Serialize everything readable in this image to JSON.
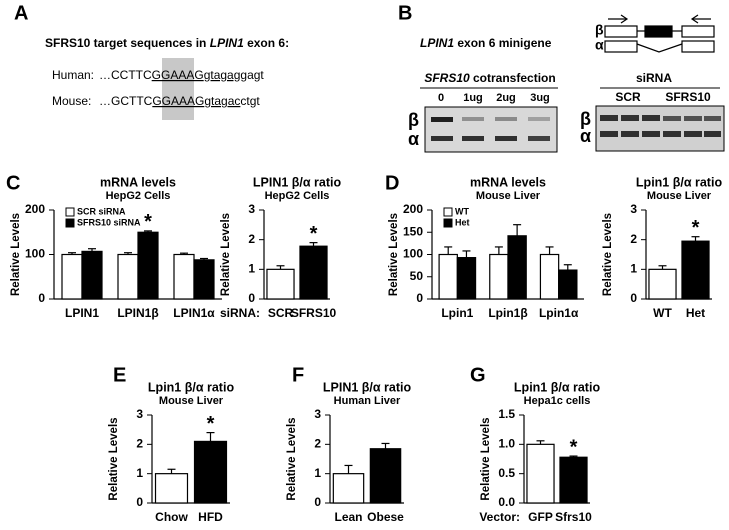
{
  "panel_labels": [
    "A",
    "B",
    "C",
    "D",
    "E",
    "F",
    "G"
  ],
  "panel_A": {
    "heading": [
      "SFRS10 target sequences in ",
      "LPIN1",
      " exon 6:"
    ],
    "rows": [
      {
        "species": "Human:",
        "seq": [
          "…CCTTC",
          "GGAAAG",
          "gtagag",
          "gagt"
        ]
      },
      {
        "species": "Mouse:",
        "seq": [
          "…GCTTC",
          "GGAAAG",
          "gtagac",
          "ctgt"
        ]
      }
    ]
  },
  "panel_B": {
    "title": [
      "LPIN1",
      " exon 6 minigene"
    ],
    "isoforms": [
      "β",
      "α"
    ],
    "cotransfection": {
      "title": [
        "SFRS10",
        " cotransfection"
      ],
      "lanes": [
        "0",
        "1ug",
        "2ug",
        "3ug"
      ]
    },
    "sirna": {
      "title": "siRNA",
      "lanes": [
        "SCR",
        "SFRS10"
      ]
    }
  },
  "chart_data": [
    {
      "type": "bar",
      "title": "mRNA levels",
      "subtitle": "HepG2 Cells",
      "ylabel": "Relative Levels",
      "categories": [
        "LPIN1",
        "LPIN1β",
        "LPIN1α"
      ],
      "series": [
        {
          "name": "SCR siRNA",
          "color": "#ffffff",
          "values": [
            100,
            100,
            100
          ],
          "errors": [
            4,
            4,
            3
          ],
          "significance": [
            null,
            null,
            null
          ]
        },
        {
          "name": "SFRS10 siRNA",
          "color": "#000000",
          "values": [
            107,
            150,
            88
          ],
          "errors": [
            6,
            3,
            3
          ],
          "significance": [
            null,
            "*",
            null
          ]
        }
      ],
      "ylim": [
        0,
        200
      ],
      "yticks": [
        0,
        100,
        200
      ]
    },
    {
      "type": "bar",
      "title": "LPIN1 β/α ratio",
      "subtitle": "HepG2 Cells",
      "ylabel": "Relative Levels",
      "xlabel": "siRNA:",
      "categories": [
        "SCR",
        "SFRS10"
      ],
      "values": [
        1.0,
        1.78
      ],
      "errors": [
        0.12,
        0.12
      ],
      "colors": [
        "#ffffff",
        "#000000"
      ],
      "significance": [
        null,
        "*"
      ],
      "ylim": [
        0,
        3
      ],
      "yticks": [
        0,
        1,
        2,
        3
      ]
    },
    {
      "type": "bar",
      "title": "mRNA levels",
      "subtitle": "Mouse Liver",
      "ylabel": "Relative Levels",
      "categories": [
        "Lpin1",
        "Lpin1β",
        "Lpin1α"
      ],
      "series": [
        {
          "name": "WT",
          "color": "#ffffff",
          "values": [
            100,
            100,
            100
          ],
          "errors": [
            17,
            17,
            17
          ],
          "significance": [
            null,
            null,
            null
          ]
        },
        {
          "name": "Het",
          "color": "#000000",
          "values": [
            93,
            142,
            65
          ],
          "errors": [
            15,
            25,
            12
          ],
          "significance": [
            null,
            null,
            null
          ]
        }
      ],
      "ylim": [
        0,
        200
      ],
      "yticks": [
        0,
        50,
        100,
        150,
        200
      ]
    },
    {
      "type": "bar",
      "title": "Lpin1 β/α ratio",
      "subtitle": "Mouse Liver",
      "ylabel": "Relative Levels",
      "categories": [
        "WT",
        "Het"
      ],
      "values": [
        1.0,
        1.95
      ],
      "errors": [
        0.12,
        0.15
      ],
      "colors": [
        "#ffffff",
        "#000000"
      ],
      "significance": [
        null,
        "*"
      ],
      "ylim": [
        0,
        3
      ],
      "yticks": [
        0,
        1,
        2,
        3
      ]
    },
    {
      "type": "bar",
      "title": "Lpin1 β/α ratio",
      "subtitle": "Mouse Liver",
      "ylabel": "Relative Levels",
      "categories": [
        "Chow",
        "HFD"
      ],
      "values": [
        1.0,
        2.1
      ],
      "errors": [
        0.15,
        0.3
      ],
      "colors": [
        "#ffffff",
        "#000000"
      ],
      "significance": [
        null,
        "*"
      ],
      "ylim": [
        0,
        3
      ],
      "yticks": [
        0,
        1,
        2,
        3
      ]
    },
    {
      "type": "bar",
      "title": "LPIN1 β/α ratio",
      "subtitle": "Human Liver",
      "ylabel": "Relative Levels",
      "categories": [
        "Lean",
        "Obese"
      ],
      "values": [
        1.0,
        1.85
      ],
      "errors": [
        0.28,
        0.18
      ],
      "colors": [
        "#ffffff",
        "#000000"
      ],
      "significance": [
        null,
        null
      ],
      "ylim": [
        0,
        3
      ],
      "yticks": [
        0,
        1,
        2,
        3
      ]
    },
    {
      "type": "bar",
      "title": "Lpin1 β/α ratio",
      "subtitle": "Hepa1c cells",
      "ylabel": "Relative Levels",
      "xlabel": "Vector:",
      "categories": [
        "GFP",
        "Sfrs10"
      ],
      "values": [
        1.0,
        0.78
      ],
      "errors": [
        0.06,
        0.02
      ],
      "colors": [
        "#ffffff",
        "#000000"
      ],
      "significance": [
        null,
        "*"
      ],
      "ylim": [
        0,
        1.5
      ],
      "yticks": [
        {
          "value": 0,
          "label": "0.0"
        },
        {
          "value": 0.5,
          "label": "0.5"
        },
        {
          "value": 1,
          "label": "1.0"
        },
        {
          "value": 1.5,
          "label": "1.5"
        }
      ]
    }
  ]
}
